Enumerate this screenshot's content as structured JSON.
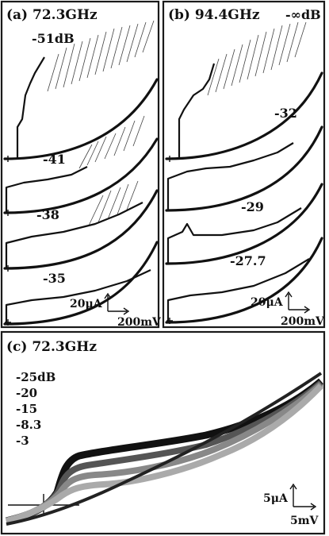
{
  "chart_data": [
    {
      "type": "line",
      "panel": "a",
      "title": "(a) 72.3GHz",
      "series": [
        {
          "name": "-51dB"
        },
        {
          "name": "-41"
        },
        {
          "name": "-38"
        },
        {
          "name": "-35"
        }
      ],
      "scale_x": "200mV",
      "scale_y": "20μA"
    },
    {
      "type": "line",
      "panel": "b",
      "title": "(b) 94.4GHz",
      "series": [
        {
          "name": "-∞dB"
        },
        {
          "name": "-32"
        },
        {
          "name": "-29"
        },
        {
          "name": "-27.7"
        }
      ],
      "scale_x": "200mV",
      "scale_y": "20μA"
    },
    {
      "type": "line",
      "panel": "c",
      "title": "(c) 72.3GHz",
      "series": [
        {
          "name": "-25dB",
          "color": "#111111"
        },
        {
          "name": "-20",
          "color": "#555555"
        },
        {
          "name": "-15",
          "color": "#888888"
        },
        {
          "name": "-8.3",
          "color": "#aaaaaa"
        },
        {
          "name": "-3",
          "color": "#222222"
        }
      ],
      "scale_x": "5mV",
      "scale_y": "5μA"
    }
  ]
}
